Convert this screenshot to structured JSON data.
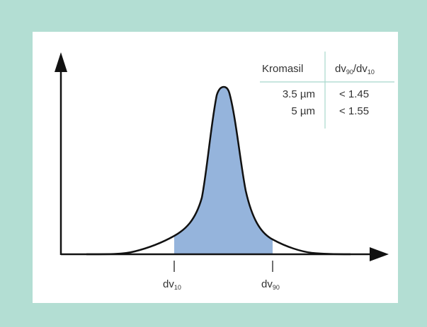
{
  "table": {
    "col1_header": "Kromasil",
    "col2_header": {
      "base1": "dv",
      "sub1": "90",
      "slash": "/",
      "base2": "dv",
      "sub2": "10"
    },
    "rows": [
      {
        "size": "3.5 µm",
        "ratio": "< 1.45"
      },
      {
        "size": "5 µm",
        "ratio": "< 1.55"
      }
    ]
  },
  "markers": [
    {
      "base": "dv",
      "sub": "10"
    },
    {
      "base": "dv",
      "sub": "90"
    }
  ],
  "colors": {
    "background": "#b3ded3",
    "panel": "#ffffff",
    "fill": "#95b4dc",
    "line": "#111111",
    "divider": "#a8d8cc"
  }
}
